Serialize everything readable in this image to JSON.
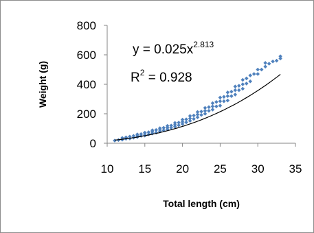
{
  "chart_data": {
    "type": "scatter",
    "xlabel": "Total length (cm)",
    "ylabel": "Weight (g)",
    "xlim": [
      10,
      35
    ],
    "ylim": [
      0,
      800
    ],
    "xticks": [
      "10",
      "15",
      "20",
      "25",
      "30",
      "35"
    ],
    "yticks": [
      "0",
      "200",
      "400",
      "600",
      "800"
    ],
    "grid": false,
    "legend": "none",
    "marker_color": "#4f81bd",
    "trendline_color": "#000000",
    "trendline": {
      "type": "power",
      "a": 0.025,
      "b": 2.813,
      "x_range": [
        11,
        33
      ]
    },
    "equation": {
      "prefix": "y = 0.025x",
      "exponent": "2.813"
    },
    "r_squared": {
      "prefix": "R",
      "power": "2",
      "suffix": " = 0.928"
    },
    "series": [
      {
        "x": [
          11,
          11.5,
          12,
          12,
          12.5,
          12.5,
          13,
          13,
          13.5,
          13.5,
          14,
          14,
          14,
          14.5,
          14.5,
          15,
          15,
          15,
          15.5,
          15.5,
          16,
          16,
          16,
          16.5,
          16.5,
          17,
          17,
          17,
          17.5,
          17.5,
          18,
          18,
          18,
          18.5,
          18.5,
          19,
          19,
          19,
          19.5,
          19.5,
          20,
          20,
          20,
          20.5,
          20.5,
          21,
          21,
          21,
          21.5,
          21.5,
          22,
          22,
          22,
          22.5,
          22.5,
          23,
          23,
          23,
          23.5,
          23.5,
          24,
          24,
          24,
          24.5,
          24.5,
          25,
          25,
          25,
          25.5,
          25.5,
          26,
          26,
          26,
          26.5,
          26.5,
          27,
          27,
          27,
          27.5,
          27.5,
          28,
          28,
          28,
          28.5,
          28.5,
          29,
          29,
          29.5,
          30,
          30,
          30.5,
          31,
          31,
          31.5,
          32,
          32.5,
          33,
          33
        ],
        "y": [
          18,
          22,
          24,
          36,
          30,
          40,
          32,
          45,
          38,
          50,
          42,
          50,
          60,
          50,
          62,
          52,
          62,
          72,
          60,
          75,
          66,
          78,
          88,
          72,
          90,
          80,
          90,
          102,
          88,
          105,
          95,
          106,
          118,
          105,
          120,
          112,
          125,
          138,
          122,
          140,
          130,
          145,
          160,
          142,
          162,
          152,
          168,
          185,
          165,
          188,
          176,
          195,
          212,
          192,
          215,
          200,
          220,
          240,
          220,
          245,
          228,
          250,
          272,
          250,
          280,
          255,
          285,
          310,
          285,
          315,
          290,
          320,
          345,
          320,
          350,
          330,
          360,
          385,
          360,
          390,
          370,
          400,
          430,
          405,
          440,
          420,
          460,
          470,
          470,
          500,
          500,
          520,
          545,
          540,
          555,
          560,
          575,
          590
        ]
      }
    ]
  }
}
